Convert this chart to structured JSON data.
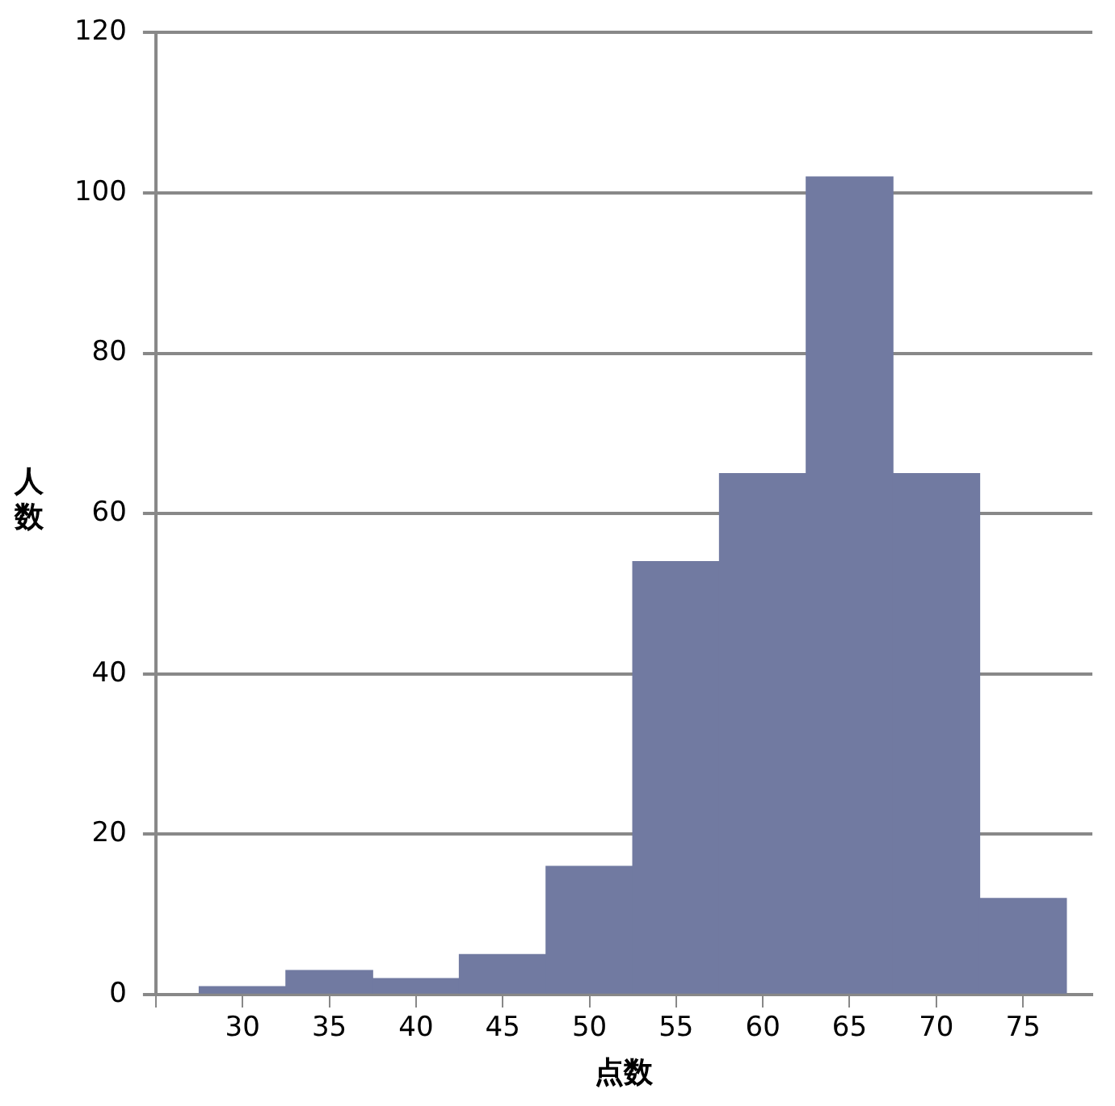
{
  "chart_data": {
    "type": "histogram",
    "xlabel": "点数",
    "ylabel": "人数",
    "bins": [
      27.5,
      32.5,
      37.5,
      42.5,
      47.5,
      52.5,
      57.5,
      62.5,
      67.5,
      72.5,
      77.5
    ],
    "values": [
      1,
      3,
      2,
      5,
      16,
      54,
      65,
      102,
      65,
      12
    ],
    "color": "#717aa1",
    "xlim": [
      25,
      79
    ],
    "xticks": [
      {
        "value": 25,
        "label": null
      },
      30,
      35,
      40,
      45,
      50,
      55,
      60,
      65,
      70,
      75
    ],
    "ylim": [
      0,
      120
    ],
    "yticks": [
      0,
      20,
      40,
      60,
      80,
      100,
      120
    ],
    "grid": "y",
    "legend": false
  }
}
